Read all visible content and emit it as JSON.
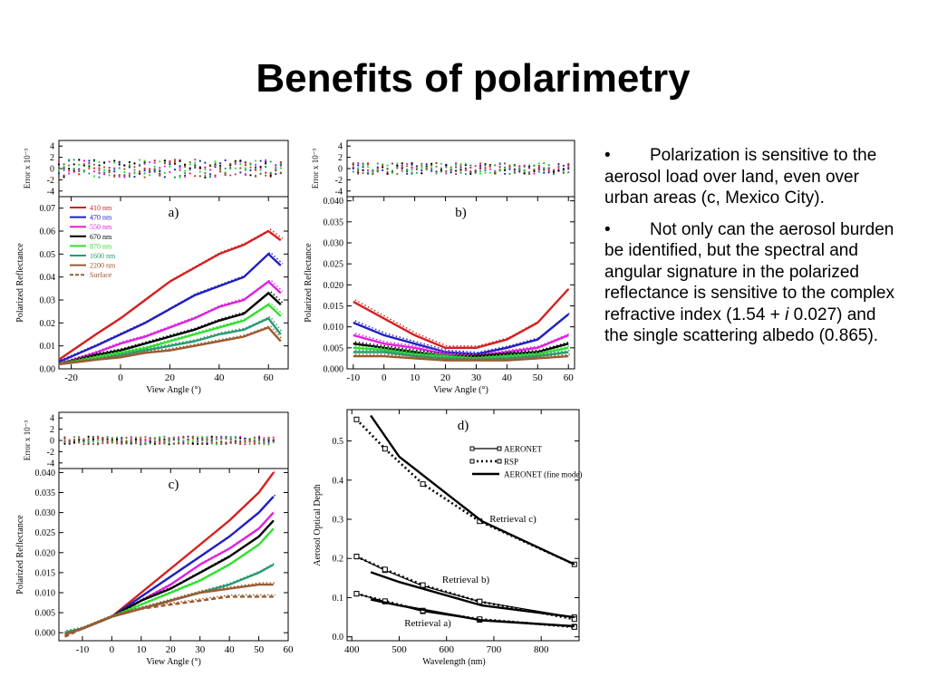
{
  "slide": {
    "title": "Benefits of polarimetry",
    "bullets": [
      {
        "text": "Polarization is sensitive to the aerosol load over land, even over urban areas (c, Mexico City)."
      },
      {
        "text_before": "Not only can the aerosol burden be identified, but the spectral and angular signature in the polarized reflectance is sensitive to the complex refractive index (1.54 + ",
        "italic": "i",
        "text_after": " 0.027) and the single scattering albedo (0.865)."
      }
    ],
    "bullet_symbol": "•"
  },
  "chart_data": [
    {
      "id": "a",
      "type": "line",
      "panel_label": "a)",
      "xlabel": "View Angle (°)",
      "ylabel": "Polarized Reflectance",
      "error_ylabel": "Error x 10⁻³",
      "xlim": [
        -25,
        68
      ],
      "ylim": [
        0,
        0.075
      ],
      "xticks": [
        -20,
        0,
        20,
        40,
        60
      ],
      "yticks": [
        0.0,
        0.01,
        0.02,
        0.03,
        0.04,
        0.05,
        0.06,
        0.07
      ],
      "ytick_labels": [
        "0.00",
        "0.01",
        "0.02",
        "0.03",
        "0.04",
        "0.05",
        "0.06",
        "0.07"
      ],
      "error_yticks": [
        4,
        2,
        0,
        -2,
        -4
      ],
      "legend": [
        {
          "name": "410 nm",
          "color": "#d42020",
          "dash": false
        },
        {
          "name": "470 nm",
          "color": "#2020c0",
          "dash": false
        },
        {
          "name": "550 nm",
          "color": "#e020e0",
          "dash": false
        },
        {
          "name": "670 nm",
          "color": "#000000",
          "dash": false
        },
        {
          "name": "870 nm",
          "color": "#30e030",
          "dash": false
        },
        {
          "name": "1600 nm",
          "color": "#2a9a70",
          "dash": false
        },
        {
          "name": "2200 nm",
          "color": "#9a5a30",
          "dash": false
        },
        {
          "name": "Surface",
          "color": "#9a5a30",
          "dash": true
        }
      ],
      "series": [
        {
          "color": "#d42020",
          "x": [
            -25,
            -10,
            0,
            10,
            20,
            30,
            40,
            50,
            60,
            65
          ],
          "y": [
            0.004,
            0.015,
            0.022,
            0.03,
            0.038,
            0.044,
            0.05,
            0.054,
            0.06,
            0.056
          ]
        },
        {
          "color": "#2020c0",
          "x": [
            -25,
            -10,
            0,
            10,
            20,
            30,
            40,
            50,
            60,
            65
          ],
          "y": [
            0.003,
            0.01,
            0.015,
            0.02,
            0.026,
            0.032,
            0.036,
            0.04,
            0.05,
            0.045
          ]
        },
        {
          "color": "#e020e0",
          "x": [
            -25,
            -10,
            0,
            10,
            20,
            30,
            40,
            50,
            60,
            65
          ],
          "y": [
            0.002,
            0.007,
            0.011,
            0.014,
            0.018,
            0.022,
            0.027,
            0.03,
            0.038,
            0.033
          ]
        },
        {
          "color": "#000000",
          "x": [
            -25,
            -10,
            0,
            10,
            20,
            30,
            40,
            50,
            60,
            65
          ],
          "y": [
            0.002,
            0.006,
            0.008,
            0.011,
            0.014,
            0.017,
            0.021,
            0.024,
            0.033,
            0.028
          ]
        },
        {
          "color": "#30e030",
          "x": [
            -25,
            -10,
            0,
            10,
            20,
            30,
            40,
            50,
            60,
            65
          ],
          "y": [
            0.002,
            0.005,
            0.007,
            0.009,
            0.012,
            0.015,
            0.018,
            0.021,
            0.028,
            0.023
          ]
        },
        {
          "color": "#2a9a70",
          "x": [
            -25,
            -10,
            0,
            10,
            20,
            30,
            40,
            50,
            60,
            65
          ],
          "y": [
            0.002,
            0.004,
            0.006,
            0.008,
            0.01,
            0.012,
            0.015,
            0.017,
            0.022,
            0.015
          ]
        },
        {
          "color": "#9a5a30",
          "x": [
            -25,
            -10,
            0,
            10,
            20,
            30,
            40,
            50,
            60,
            65
          ],
          "y": [
            0.002,
            0.004,
            0.005,
            0.007,
            0.008,
            0.01,
            0.012,
            0.014,
            0.018,
            0.012
          ]
        }
      ]
    },
    {
      "id": "b",
      "type": "line",
      "panel_label": "b)",
      "xlabel": "View Angle (°)",
      "ylabel": "Polarized Reflectance",
      "error_ylabel": "Error x 10⁻³",
      "xlim": [
        -12,
        62
      ],
      "ylim": [
        0,
        0.041
      ],
      "xticks": [
        -10,
        0,
        10,
        20,
        30,
        40,
        50,
        60
      ],
      "yticks": [
        0.0,
        0.005,
        0.01,
        0.015,
        0.02,
        0.025,
        0.03,
        0.035,
        0.04
      ],
      "ytick_labels": [
        "0.000",
        "0.005",
        "0.010",
        "0.015",
        "0.020",
        "0.025",
        "0.030",
        "0.035",
        "0.040"
      ],
      "error_yticks": [
        4,
        2,
        0,
        -2,
        -4
      ],
      "series": [
        {
          "color": "#d42020",
          "x": [
            -10,
            0,
            10,
            20,
            30,
            40,
            50,
            60
          ],
          "y": [
            0.016,
            0.012,
            0.008,
            0.005,
            0.005,
            0.007,
            0.011,
            0.019
          ]
        },
        {
          "color": "#2020c0",
          "x": [
            -10,
            0,
            10,
            20,
            30,
            40,
            50,
            60
          ],
          "y": [
            0.011,
            0.008,
            0.006,
            0.004,
            0.0035,
            0.005,
            0.007,
            0.013
          ]
        },
        {
          "color": "#e020e0",
          "x": [
            -10,
            0,
            10,
            20,
            30,
            40,
            50,
            60
          ],
          "y": [
            0.008,
            0.006,
            0.005,
            0.0035,
            0.003,
            0.004,
            0.005,
            0.008
          ]
        },
        {
          "color": "#000000",
          "x": [
            -10,
            0,
            10,
            20,
            30,
            40,
            50,
            60
          ],
          "y": [
            0.006,
            0.005,
            0.004,
            0.003,
            0.003,
            0.0035,
            0.004,
            0.006
          ]
        },
        {
          "color": "#30e030",
          "x": [
            -10,
            0,
            10,
            20,
            30,
            40,
            50,
            60
          ],
          "y": [
            0.005,
            0.0045,
            0.0035,
            0.003,
            0.0025,
            0.003,
            0.0035,
            0.005
          ]
        },
        {
          "color": "#2a9a70",
          "x": [
            -10,
            0,
            10,
            20,
            30,
            40,
            50,
            60
          ],
          "y": [
            0.004,
            0.004,
            0.003,
            0.0025,
            0.0022,
            0.0025,
            0.003,
            0.004
          ]
        },
        {
          "color": "#9a5a30",
          "x": [
            -10,
            0,
            10,
            20,
            30,
            40,
            50,
            60
          ],
          "y": [
            0.003,
            0.003,
            0.0025,
            0.002,
            0.002,
            0.002,
            0.0025,
            0.003
          ]
        }
      ]
    },
    {
      "id": "c",
      "type": "line",
      "panel_label": "c)",
      "xlabel": "View Angle (°)",
      "ylabel": "Polarized Reflectance",
      "error_ylabel": "Error x 10⁻³",
      "xlim": [
        -18,
        60
      ],
      "ylim": [
        -0.002,
        0.041
      ],
      "xticks": [
        -10,
        0,
        10,
        20,
        30,
        40,
        50,
        60
      ],
      "yticks": [
        0.0,
        0.005,
        0.01,
        0.015,
        0.02,
        0.025,
        0.03,
        0.035,
        0.04
      ],
      "ytick_labels": [
        "0.000",
        "0.005",
        "0.010",
        "0.015",
        "0.020",
        "0.025",
        "0.030",
        "0.035",
        "0.040"
      ],
      "error_yticks": [
        4,
        2,
        0,
        -2,
        -4
      ],
      "series": [
        {
          "color": "#d42020",
          "x": [
            -16,
            -10,
            0,
            10,
            20,
            30,
            40,
            50,
            55
          ],
          "y": [
            0.0,
            0.001,
            0.004,
            0.01,
            0.016,
            0.022,
            0.028,
            0.035,
            0.04
          ]
        },
        {
          "color": "#2020c0",
          "x": [
            -16,
            -10,
            0,
            10,
            20,
            30,
            40,
            50,
            55
          ],
          "y": [
            0.0,
            0.001,
            0.004,
            0.009,
            0.014,
            0.019,
            0.024,
            0.03,
            0.034
          ]
        },
        {
          "color": "#e020e0",
          "x": [
            -16,
            -10,
            0,
            10,
            20,
            30,
            40,
            50,
            55
          ],
          "y": [
            0.0,
            0.001,
            0.004,
            0.008,
            0.012,
            0.017,
            0.021,
            0.026,
            0.03
          ]
        },
        {
          "color": "#000000",
          "x": [
            -16,
            -10,
            0,
            10,
            20,
            30,
            40,
            50,
            55
          ],
          "y": [
            0.0,
            0.001,
            0.004,
            0.008,
            0.011,
            0.015,
            0.019,
            0.024,
            0.028
          ]
        },
        {
          "color": "#30e030",
          "x": [
            -16,
            -10,
            0,
            10,
            20,
            30,
            40,
            50,
            55
          ],
          "y": [
            0.0,
            0.001,
            0.004,
            0.007,
            0.01,
            0.013,
            0.017,
            0.022,
            0.026
          ]
        },
        {
          "color": "#2a9a70",
          "x": [
            -16,
            -10,
            0,
            10,
            20,
            30,
            40,
            50,
            55
          ],
          "y": [
            0.0,
            0.001,
            0.004,
            0.006,
            0.008,
            0.01,
            0.012,
            0.015,
            0.017
          ]
        },
        {
          "color": "#9a5a30",
          "x": [
            -16,
            -10,
            0,
            10,
            20,
            30,
            40,
            50,
            55
          ],
          "y": [
            -0.0005,
            0.001,
            0.004,
            0.006,
            0.008,
            0.01,
            0.011,
            0.012,
            0.012
          ]
        },
        {
          "color": "#9a5a30",
          "dash": true,
          "x": [
            -16,
            -10,
            0,
            10,
            20,
            30,
            40,
            50,
            55
          ],
          "y": [
            -0.001,
            0.001,
            0.004,
            0.006,
            0.007,
            0.008,
            0.009,
            0.009,
            0.009
          ]
        }
      ]
    },
    {
      "id": "d",
      "type": "line",
      "panel_label": "d)",
      "xlabel": "Wavelength (nm)",
      "ylabel": "Aerosol Optical Depth",
      "xlim": [
        390,
        880
      ],
      "ylim": [
        -0.01,
        0.58
      ],
      "xticks": [
        400,
        500,
        600,
        700,
        800
      ],
      "yticks": [
        0.0,
        0.1,
        0.2,
        0.3,
        0.4,
        0.5
      ],
      "ytick_labels": [
        "0.0",
        "0.1",
        "0.2",
        "0.3",
        "0.4",
        "0.5"
      ],
      "legend": [
        {
          "name": "AERONET",
          "style": "solid-square"
        },
        {
          "name": "RSP",
          "style": "dotted-square"
        },
        {
          "name": "AERONET (fine mode)",
          "style": "solid-thick"
        }
      ],
      "annotations": [
        "Retrieval c)",
        "Retrieval b)",
        "Retrieval a)"
      ],
      "series": [
        {
          "name": "AERONET",
          "group": "a",
          "x": [
            410,
            470,
            550,
            670,
            870
          ],
          "y": [
            0.11,
            0.09,
            0.065,
            0.043,
            0.026
          ]
        },
        {
          "name": "RSP",
          "group": "a",
          "x": [
            410,
            470,
            550,
            670,
            870
          ],
          "y": [
            0.11,
            0.091,
            0.067,
            0.045,
            0.025
          ]
        },
        {
          "name": "AERONET (fine mode)",
          "group": "a",
          "x": [
            440,
            500,
            675,
            870
          ],
          "y": [
            0.095,
            0.08,
            0.042,
            0.027
          ]
        },
        {
          "name": "AERONET",
          "group": "b",
          "x": [
            410,
            470,
            550,
            670,
            870
          ],
          "y": [
            0.205,
            0.17,
            0.13,
            0.09,
            0.05
          ]
        },
        {
          "name": "RSP",
          "group": "b",
          "x": [
            410,
            470,
            550,
            670,
            870
          ],
          "y": [
            0.205,
            0.172,
            0.132,
            0.09,
            0.045
          ]
        },
        {
          "name": "AERONET (fine mode)",
          "group": "b",
          "x": [
            440,
            500,
            675,
            870
          ],
          "y": [
            0.165,
            0.14,
            0.08,
            0.05
          ]
        },
        {
          "name": "RSP",
          "group": "c",
          "x": [
            410,
            470,
            550,
            670,
            870
          ],
          "y": [
            0.555,
            0.48,
            0.39,
            0.295,
            0.185
          ]
        },
        {
          "name": "AERONET (fine mode)",
          "group": "c",
          "x": [
            440,
            500,
            675,
            870
          ],
          "y": [
            0.565,
            0.46,
            0.295,
            0.185
          ]
        }
      ]
    }
  ]
}
